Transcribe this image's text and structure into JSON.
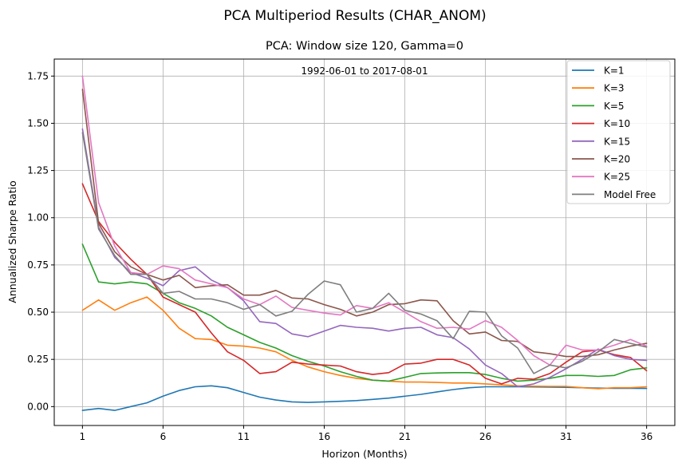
{
  "figure": {
    "suptitle": "PCA Multiperiod Results (CHAR_ANOM)",
    "title": "PCA: Window size 120, Gamma=0",
    "annotation": "1992-06-01 to 2017-08-01"
  },
  "chart_data": {
    "type": "line",
    "title": "PCA: Window size 120, Gamma=0",
    "xlabel": "Horizon (Months)",
    "ylabel": "Annualized Sharpe Ratio",
    "xlim": [
      -0.75,
      37.75
    ],
    "ylim": [
      -0.1,
      1.84
    ],
    "xticks": [
      1,
      6,
      11,
      16,
      21,
      26,
      31,
      36
    ],
    "yticks": [
      0.0,
      0.25,
      0.5,
      0.75,
      1.0,
      1.25,
      1.5,
      1.75
    ],
    "ytick_labels": [
      "0.00",
      "0.25",
      "0.50",
      "0.75",
      "1.00",
      "1.25",
      "1.50",
      "1.75"
    ],
    "grid": true,
    "legend_position": "top-right",
    "x": [
      1,
      2,
      3,
      4,
      5,
      6,
      7,
      8,
      9,
      10,
      11,
      12,
      13,
      14,
      15,
      16,
      17,
      18,
      19,
      20,
      21,
      22,
      23,
      24,
      25,
      26,
      27,
      28,
      29,
      30,
      31,
      32,
      33,
      34,
      35,
      36
    ],
    "series": [
      {
        "name": "K=1",
        "color": "#1f77b4",
        "values": [
          -0.02,
          -0.01,
          -0.02,
          0.0,
          0.02,
          0.055,
          0.085,
          0.105,
          0.11,
          0.1,
          0.075,
          0.05,
          0.035,
          0.025,
          0.022,
          0.025,
          0.028,
          0.032,
          0.038,
          0.045,
          0.055,
          0.065,
          0.078,
          0.09,
          0.1,
          0.105,
          0.105,
          0.105,
          0.104,
          0.103,
          0.102,
          0.1,
          0.098,
          0.097,
          0.097,
          0.096
        ]
      },
      {
        "name": "K=3",
        "color": "#ff7f0e",
        "values": [
          0.51,
          0.565,
          0.51,
          0.55,
          0.58,
          0.51,
          0.415,
          0.36,
          0.355,
          0.325,
          0.32,
          0.31,
          0.29,
          0.245,
          0.21,
          0.185,
          0.165,
          0.15,
          0.14,
          0.135,
          0.13,
          0.13,
          0.128,
          0.125,
          0.125,
          0.12,
          0.115,
          0.11,
          0.108,
          0.107,
          0.107,
          0.1,
          0.095,
          0.1,
          0.1,
          0.105
        ]
      },
      {
        "name": "K=5",
        "color": "#2ca02c",
        "values": [
          0.86,
          0.66,
          0.65,
          0.66,
          0.65,
          0.6,
          0.55,
          0.52,
          0.48,
          0.42,
          0.38,
          0.34,
          0.31,
          0.27,
          0.24,
          0.215,
          0.185,
          0.16,
          0.14,
          0.135,
          0.155,
          0.175,
          0.178,
          0.18,
          0.18,
          0.17,
          0.15,
          0.135,
          0.14,
          0.15,
          0.165,
          0.165,
          0.16,
          0.165,
          0.195,
          0.205
        ]
      },
      {
        "name": "K=10",
        "color": "#d62728",
        "values": [
          1.18,
          0.98,
          0.87,
          0.78,
          0.7,
          0.58,
          0.54,
          0.5,
          0.39,
          0.29,
          0.245,
          0.175,
          0.185,
          0.235,
          0.225,
          0.22,
          0.215,
          0.185,
          0.17,
          0.18,
          0.225,
          0.23,
          0.25,
          0.25,
          0.22,
          0.15,
          0.12,
          0.15,
          0.145,
          0.175,
          0.235,
          0.29,
          0.3,
          0.275,
          0.26,
          0.19
        ]
      },
      {
        "name": "K=15",
        "color": "#9467bd",
        "values": [
          1.47,
          0.95,
          0.79,
          0.71,
          0.68,
          0.64,
          0.72,
          0.74,
          0.67,
          0.63,
          0.56,
          0.45,
          0.44,
          0.385,
          0.37,
          0.4,
          0.43,
          0.42,
          0.415,
          0.4,
          0.415,
          0.42,
          0.38,
          0.365,
          0.305,
          0.22,
          0.175,
          0.105,
          0.12,
          0.155,
          0.2,
          0.25,
          0.305,
          0.27,
          0.25,
          0.245
        ]
      },
      {
        "name": "K=20",
        "color": "#8c564b",
        "values": [
          1.68,
          0.97,
          0.82,
          0.74,
          0.7,
          0.67,
          0.695,
          0.63,
          0.64,
          0.645,
          0.59,
          0.59,
          0.615,
          0.575,
          0.57,
          0.54,
          0.515,
          0.48,
          0.5,
          0.54,
          0.545,
          0.565,
          0.56,
          0.455,
          0.385,
          0.395,
          0.35,
          0.345,
          0.29,
          0.28,
          0.265,
          0.265,
          0.275,
          0.3,
          0.32,
          0.335
        ]
      },
      {
        "name": "K=25",
        "color": "#e377c2",
        "values": [
          1.75,
          1.08,
          0.85,
          0.71,
          0.7,
          0.745,
          0.73,
          0.67,
          0.65,
          0.63,
          0.57,
          0.54,
          0.585,
          0.525,
          0.51,
          0.495,
          0.485,
          0.535,
          0.52,
          0.55,
          0.5,
          0.45,
          0.415,
          0.42,
          0.41,
          0.455,
          0.42,
          0.35,
          0.27,
          0.22,
          0.325,
          0.3,
          0.3,
          0.325,
          0.355,
          0.32
        ]
      },
      {
        "name": "Model Free",
        "color": "#7f7f7f",
        "values": [
          1.45,
          0.94,
          0.8,
          0.7,
          0.7,
          0.6,
          0.61,
          0.57,
          0.57,
          0.55,
          0.515,
          0.54,
          0.48,
          0.505,
          0.595,
          0.665,
          0.645,
          0.5,
          0.52,
          0.6,
          0.51,
          0.49,
          0.455,
          0.36,
          0.505,
          0.5,
          0.375,
          0.31,
          0.175,
          0.22,
          0.205,
          0.24,
          0.29,
          0.355,
          0.335,
          0.315
        ]
      }
    ]
  }
}
